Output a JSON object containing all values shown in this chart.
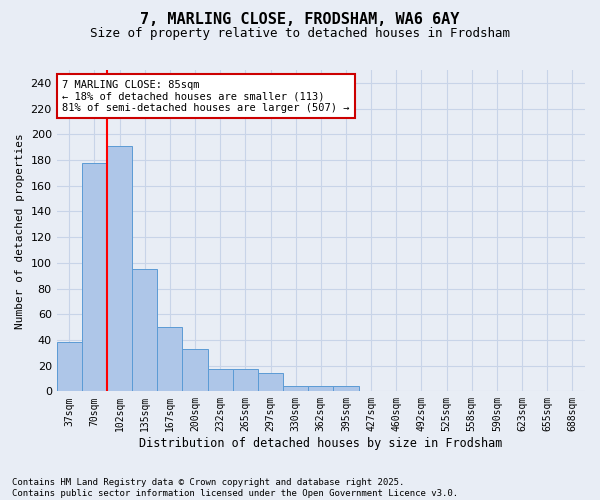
{
  "title": "7, MARLING CLOSE, FRODSHAM, WA6 6AY",
  "subtitle": "Size of property relative to detached houses in Frodsham",
  "xlabel": "Distribution of detached houses by size in Frodsham",
  "ylabel": "Number of detached properties",
  "bar_values": [
    38,
    178,
    191,
    95,
    50,
    33,
    17,
    17,
    14,
    4,
    4,
    4,
    0,
    0,
    0,
    0,
    0,
    0,
    0,
    0,
    0
  ],
  "categories": [
    "37sqm",
    "70sqm",
    "102sqm",
    "135sqm",
    "167sqm",
    "200sqm",
    "232sqm",
    "265sqm",
    "297sqm",
    "330sqm",
    "362sqm",
    "395sqm",
    "427sqm",
    "460sqm",
    "492sqm",
    "525sqm",
    "558sqm",
    "590sqm",
    "623sqm",
    "655sqm",
    "688sqm"
  ],
  "bar_color": "#aec6e8",
  "bar_edge_color": "#5b9bd5",
  "grid_color": "#c8d4e8",
  "background_color": "#e8edf5",
  "red_line_x": 1.5,
  "annotation_text": "7 MARLING CLOSE: 85sqm\n← 18% of detached houses are smaller (113)\n81% of semi-detached houses are larger (507) →",
  "annotation_box_color": "#ffffff",
  "annotation_border_color": "#cc0000",
  "footer_text": "Contains HM Land Registry data © Crown copyright and database right 2025.\nContains public sector information licensed under the Open Government Licence v3.0.",
  "ylim": [
    0,
    250
  ],
  "yticks": [
    0,
    20,
    40,
    60,
    80,
    100,
    120,
    140,
    160,
    180,
    200,
    220,
    240
  ],
  "title_fontsize": 11,
  "subtitle_fontsize": 9
}
